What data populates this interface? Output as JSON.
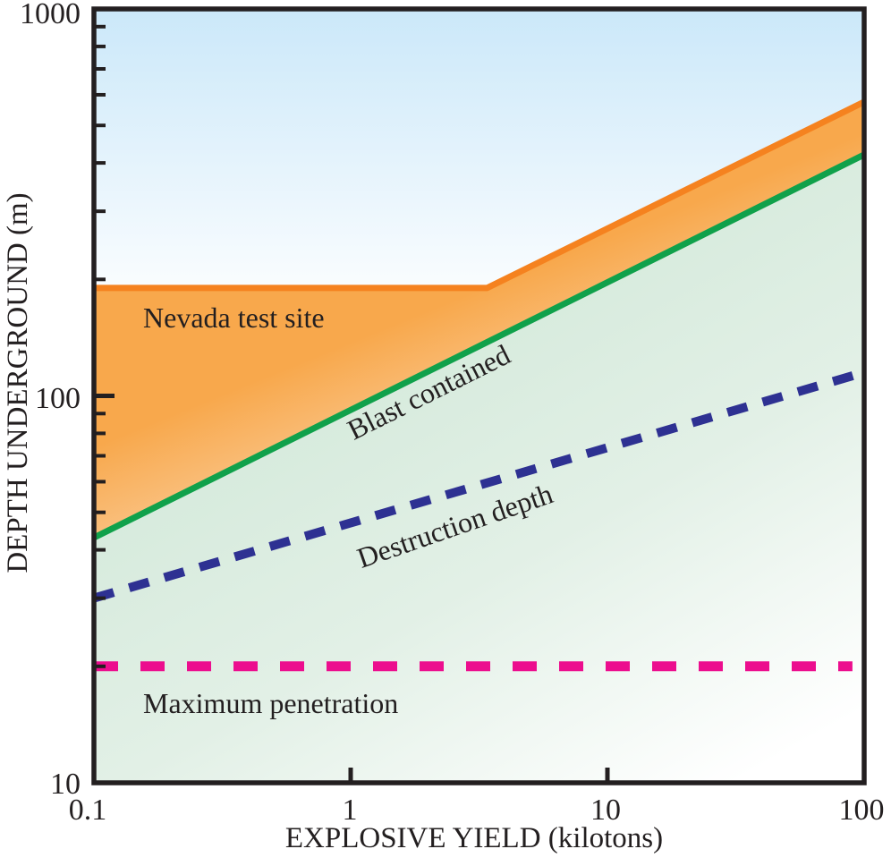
{
  "chart_data": {
    "type": "line",
    "title": "",
    "xlabel": "EXPLOSIVE YIELD (kilotons)",
    "ylabel": "DEPTH UNDERGROUND (m)",
    "x_scale": "log",
    "y_scale": "log",
    "xlim": [
      0.1,
      100
    ],
    "ylim": [
      10,
      1000
    ],
    "x_ticks": [
      {
        "v": 0.1,
        "label": "0.1"
      },
      {
        "v": 1,
        "label": "1"
      },
      {
        "v": 10,
        "label": "10"
      },
      {
        "v": 100,
        "label": "100"
      }
    ],
    "y_ticks": [
      {
        "v": 1000,
        "label": "1000"
      },
      {
        "v": 100,
        "label": "100"
      },
      {
        "v": 10,
        "label": "10"
      }
    ],
    "grid": false,
    "legend_position": "labels-on-lines",
    "series": [
      {
        "name": "Nevada test site",
        "color": "#f5821f",
        "style": "solid",
        "width": 7,
        "points": [
          [
            0.1,
            190
          ],
          [
            3.4,
            190
          ],
          [
            100,
            575
          ]
        ]
      },
      {
        "name": "Blast contained",
        "color": "#10a14b",
        "style": "solid",
        "width": 7,
        "points": [
          [
            0.1,
            43
          ],
          [
            100,
            420
          ]
        ]
      },
      {
        "name": "Destruction depth",
        "color": "#2e3192",
        "style": "dashed",
        "dash": [
          23,
          18
        ],
        "width": 10,
        "points": [
          [
            0.1,
            30
          ],
          [
            100,
            115
          ]
        ]
      },
      {
        "name": "Maximum penetration",
        "color": "#ec0e8e",
        "style": "dashed",
        "dash": [
          27,
          25
        ],
        "width": 11,
        "points": [
          [
            0.1,
            20
          ],
          [
            90,
            20
          ]
        ]
      }
    ],
    "colors": {
      "sky_top": "#cbe8f9",
      "orange_fill": "#f8a84c",
      "green_fill": "#d3e9da",
      "axis": "#231f20",
      "text": "#231f20"
    }
  }
}
